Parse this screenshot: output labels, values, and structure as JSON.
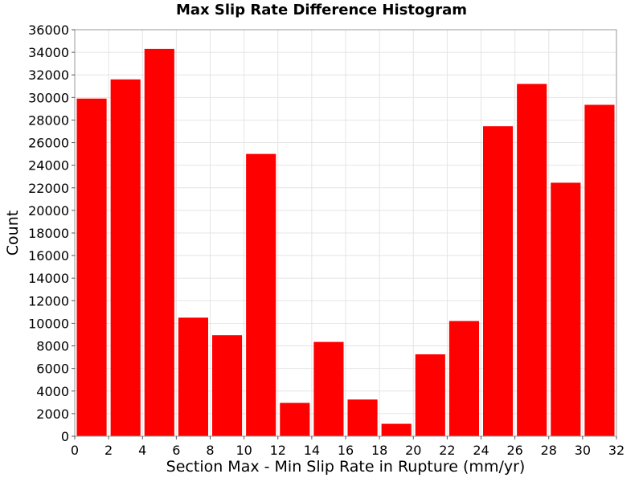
{
  "chart_data": {
    "type": "bar",
    "title": "Max Slip Rate Difference Histogram",
    "xlabel": "Section Max - Min Slip Rate in Rupture (mm/yr)",
    "ylabel": "Count",
    "xlim": [
      0,
      32
    ],
    "ylim": [
      0,
      36000
    ],
    "xticks": [
      0,
      2,
      4,
      6,
      8,
      10,
      12,
      14,
      16,
      18,
      20,
      22,
      24,
      26,
      28,
      30,
      32
    ],
    "yticks": [
      0,
      2000,
      4000,
      6000,
      8000,
      10000,
      12000,
      14000,
      16000,
      18000,
      20000,
      22000,
      24000,
      26000,
      28000,
      30000,
      32000,
      34000,
      36000
    ],
    "bin_width": 2,
    "bins": [
      {
        "x": 1,
        "value": 29900
      },
      {
        "x": 3,
        "value": 31600
      },
      {
        "x": 5,
        "value": 34300
      },
      {
        "x": 7,
        "value": 10500
      },
      {
        "x": 9,
        "value": 8950
      },
      {
        "x": 11,
        "value": 25000
      },
      {
        "x": 13,
        "value": 2950
      },
      {
        "x": 15,
        "value": 8350
      },
      {
        "x": 17,
        "value": 3250
      },
      {
        "x": 19,
        "value": 1100
      },
      {
        "x": 21,
        "value": 7250
      },
      {
        "x": 23,
        "value": 10200
      },
      {
        "x": 25,
        "value": 27450
      },
      {
        "x": 27,
        "value": 31200
      },
      {
        "x": 29,
        "value": 22450
      },
      {
        "x": 31,
        "value": 29350
      }
    ],
    "bar_color": "#ff0000",
    "grid": true,
    "legend": "none"
  }
}
